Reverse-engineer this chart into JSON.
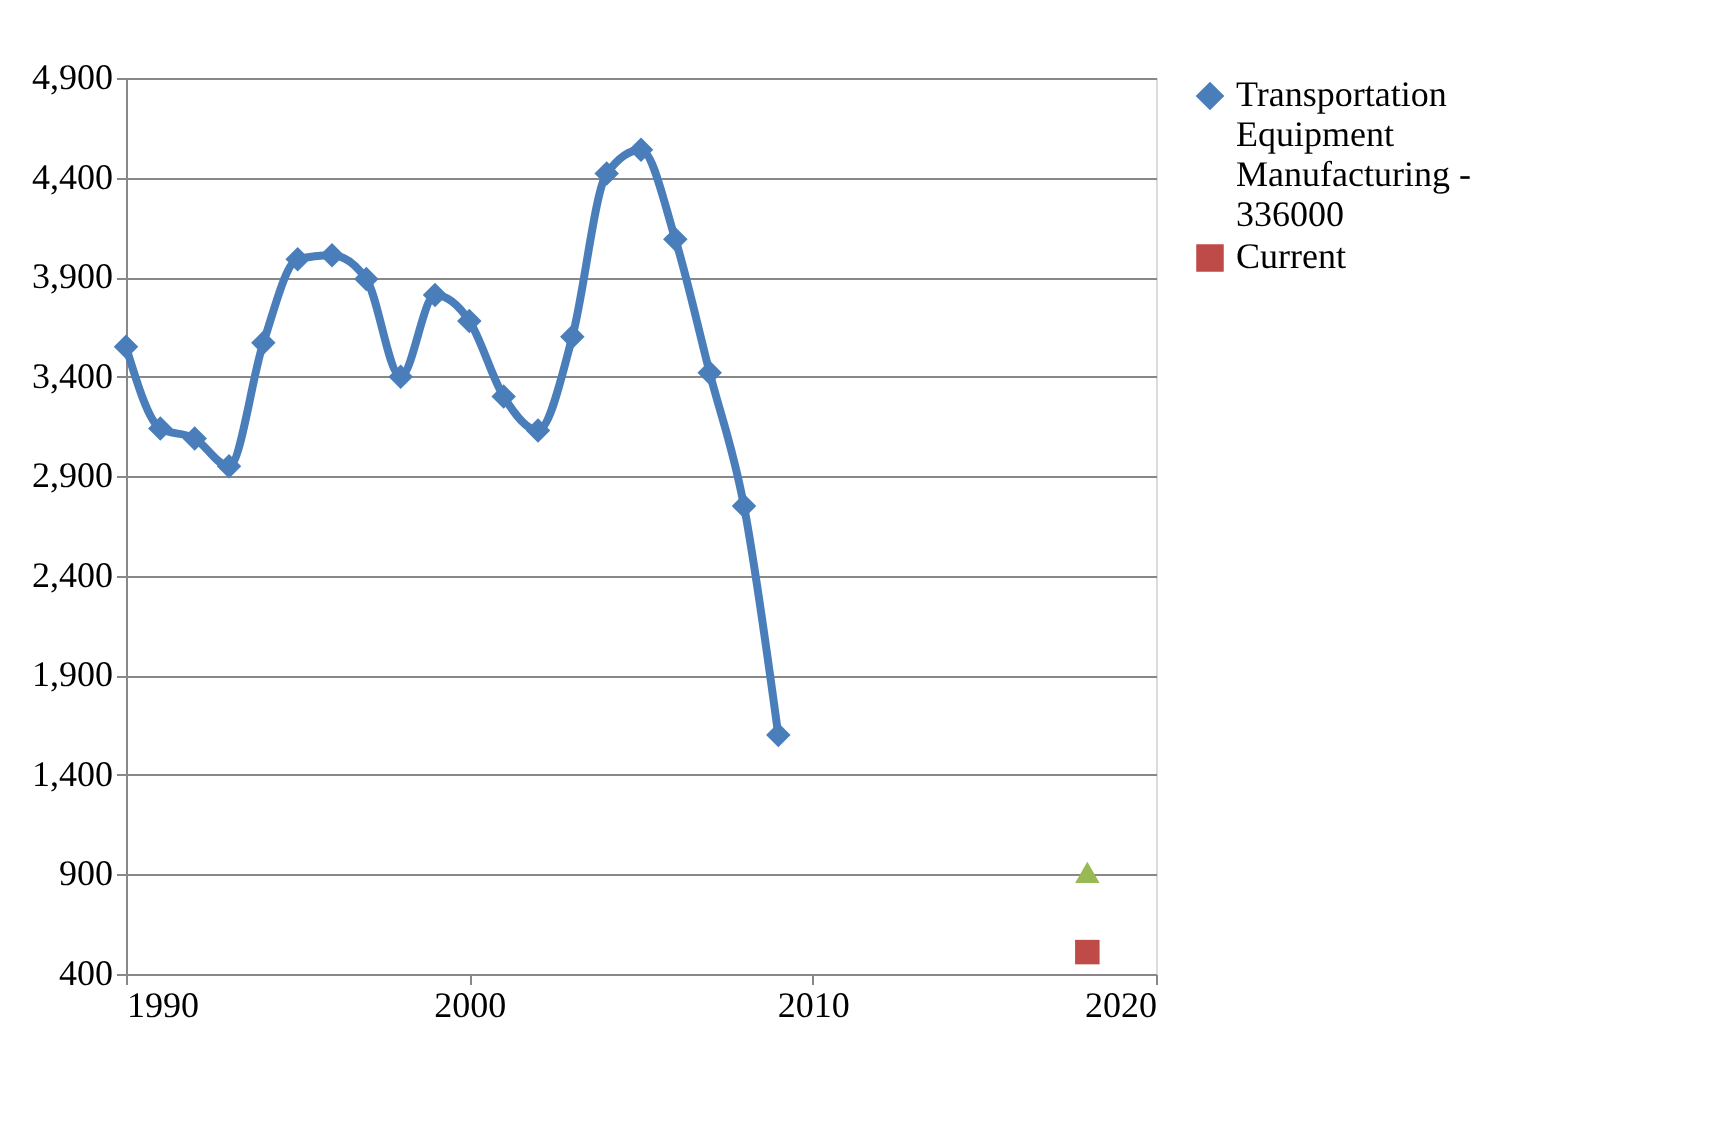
{
  "chart_data": {
    "type": "line",
    "xlim": [
      1990,
      2020
    ],
    "xticks": [
      1990,
      2000,
      2010,
      2020
    ],
    "ylim": [
      400,
      4900
    ],
    "yticks": [
      400,
      900,
      {
        "value": 1400,
        "label": "1,400"
      },
      {
        "value": 1900,
        "label": "1,900"
      },
      {
        "value": 2400,
        "label": "2,400"
      },
      {
        "value": 2900,
        "label": "2,900"
      },
      {
        "value": 3400,
        "label": "3,400"
      },
      {
        "value": 3900,
        "label": "3,900"
      },
      {
        "value": 4400,
        "label": "4,400"
      },
      {
        "value": 4900,
        "label": "4,900"
      }
    ],
    "grid": "y",
    "legend": "right",
    "series": [
      {
        "name": "Transportation Equipment Manufacturing - 336000",
        "color": "#4a7ebb",
        "marker": "diamond",
        "x": [
          1990,
          1991,
          1992,
          1993,
          1994,
          1995,
          1996,
          1997,
          1998,
          1999,
          2000,
          2001,
          2002,
          2003,
          2004,
          2005,
          2006,
          2007,
          2008,
          2009
        ],
        "values": [
          3550,
          3140,
          3090,
          2950,
          3570,
          3990,
          4010,
          3890,
          3400,
          3810,
          3680,
          3300,
          3130,
          3600,
          4420,
          4540,
          4090,
          3420,
          2750,
          1600
        ]
      },
      {
        "name": "Current",
        "color": "#be4b48",
        "marker": "square",
        "x": [
          2018
        ],
        "values": [
          510
        ]
      },
      {
        "type": "scatter",
        "color": "#98b954",
        "marker": "triangle",
        "x": [
          2018
        ],
        "values": [
          910
        ]
      }
    ]
  }
}
